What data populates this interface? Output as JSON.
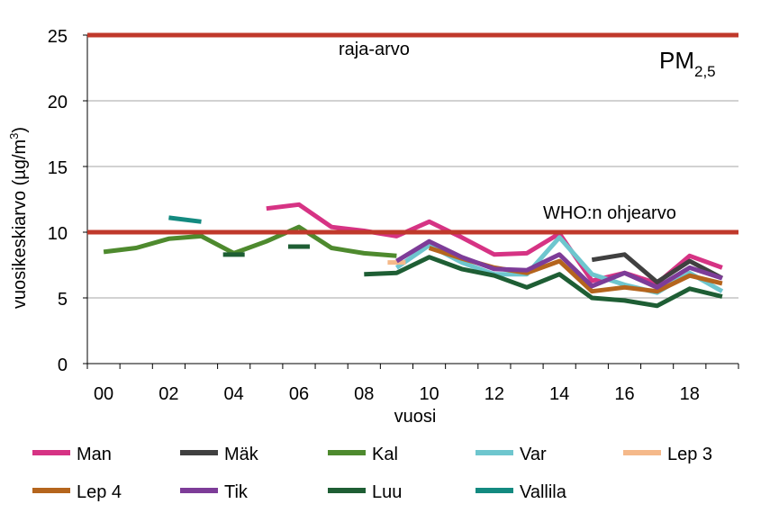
{
  "chart_data": {
    "type": "line",
    "title": "PM",
    "title_sub": "2,5",
    "xlabel": "vuosi",
    "ylabel_main": "vuosikeskiarvo (µg/m",
    "ylabel_sup": "3",
    "ylabel_end": ")",
    "ylim": [
      0,
      25
    ],
    "yticks": [
      0,
      5,
      10,
      15,
      20,
      25
    ],
    "xlim": [
      2000,
      2019
    ],
    "x_tick_labels": [
      "00",
      "02",
      "04",
      "06",
      "08",
      "10",
      "12",
      "14",
      "16",
      "18"
    ],
    "x": [
      2000,
      2001,
      2002,
      2003,
      2004,
      2005,
      2006,
      2007,
      2008,
      2009,
      2010,
      2011,
      2012,
      2013,
      2014,
      2015,
      2016,
      2017,
      2018,
      2019
    ],
    "reference_lines": [
      {
        "name": "raja-arvo",
        "value": 25,
        "color": "#C0392B"
      },
      {
        "name": "WHO:n ohjearvo",
        "value": 10,
        "color": "#C0392B"
      }
    ],
    "series": [
      {
        "name": "Man",
        "color": "#D63384",
        "values": [
          null,
          null,
          null,
          null,
          null,
          11.8,
          12.1,
          10.4,
          10.1,
          9.7,
          10.8,
          9.6,
          8.3,
          8.4,
          9.9,
          6.3,
          6.9,
          6.1,
          8.2,
          7.3
        ]
      },
      {
        "name": "Mäk",
        "color": "#404040",
        "values": [
          null,
          null,
          null,
          null,
          null,
          null,
          null,
          null,
          null,
          null,
          null,
          null,
          null,
          null,
          null,
          7.9,
          8.3,
          6.2,
          7.8,
          6.5
        ]
      },
      {
        "name": "Kal",
        "color": "#4E8A2E",
        "values": [
          8.5,
          8.8,
          9.5,
          9.7,
          8.4,
          9.3,
          10.4,
          8.8,
          8.4,
          8.2,
          null,
          null,
          null,
          null,
          null,
          null,
          null,
          null,
          null,
          null
        ]
      },
      {
        "name": "Var",
        "color": "#6EC6CE",
        "values": [
          null,
          null,
          null,
          null,
          null,
          null,
          null,
          null,
          null,
          7.3,
          9.0,
          7.7,
          6.8,
          6.8,
          9.6,
          6.8,
          6.0,
          5.4,
          6.9,
          5.5
        ]
      },
      {
        "name": "Lep 3",
        "color": "#F5B98A",
        "values": [
          null,
          null,
          null,
          null,
          null,
          null,
          null,
          null,
          null,
          7.7,
          null,
          null,
          null,
          null,
          null,
          null,
          null,
          null,
          null,
          null
        ]
      },
      {
        "name": "Lep 4",
        "color": "#B5651D",
        "values": [
          null,
          null,
          null,
          null,
          null,
          null,
          null,
          null,
          null,
          null,
          8.8,
          8.0,
          7.3,
          6.9,
          7.8,
          5.5,
          5.8,
          5.5,
          6.7,
          6.1
        ]
      },
      {
        "name": "Tik",
        "color": "#7D3C98",
        "values": [
          null,
          null,
          null,
          null,
          null,
          null,
          null,
          null,
          null,
          7.8,
          9.3,
          8.1,
          7.2,
          7.1,
          8.3,
          5.9,
          6.9,
          5.8,
          7.3,
          6.5
        ]
      },
      {
        "name": "Luu",
        "color": "#1E5E34",
        "values": [
          null,
          null,
          null,
          null,
          null,
          null,
          null,
          null,
          6.8,
          6.9,
          8.1,
          7.2,
          6.7,
          5.8,
          6.8,
          5.0,
          4.8,
          4.4,
          5.7,
          5.1
        ]
      },
      {
        "name": "Vallila",
        "color": "#138A80",
        "values": [
          null,
          null,
          11.1,
          10.8,
          null,
          null,
          null,
          null,
          null,
          null,
          null,
          null,
          null,
          null,
          null,
          null,
          null,
          null,
          null,
          null
        ]
      }
    ],
    "single_year_marks": [
      {
        "series": "Luu",
        "x": 2004,
        "value": 8.3
      },
      {
        "series": "Luu",
        "x": 2006,
        "value": 8.9
      }
    ]
  }
}
